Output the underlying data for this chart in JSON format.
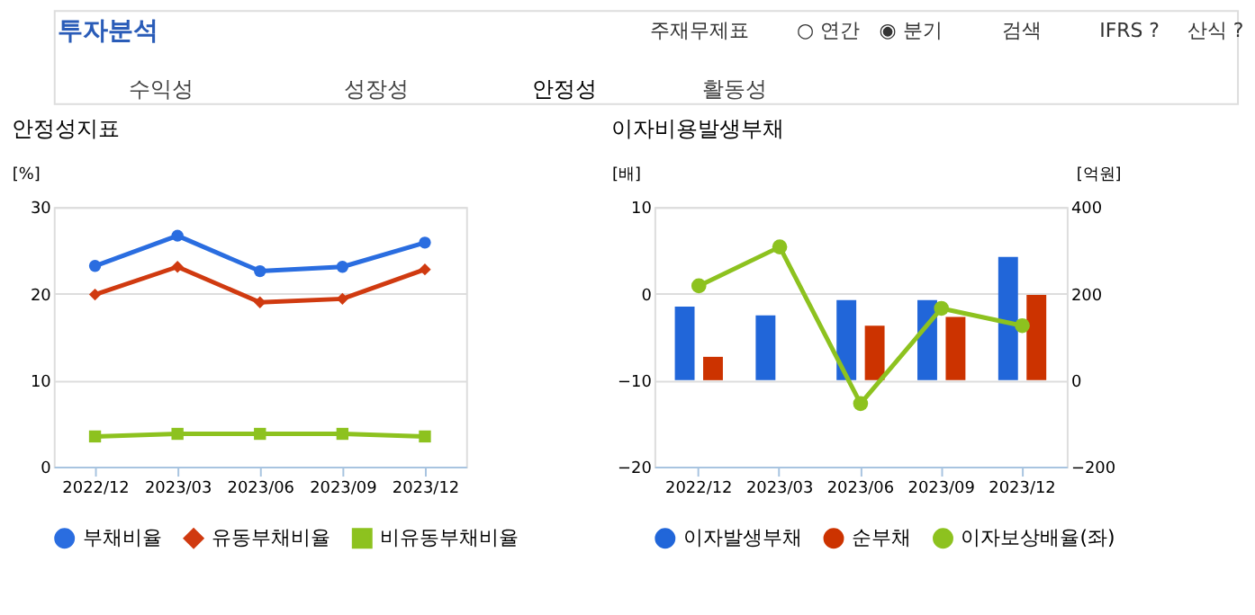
{
  "chart_data": [
    {
      "type": "other",
      "title": "투자분석",
      "annotations": [
        "주재무제표",
        "○ 연간",
        "◉ 분기",
        "검색",
        "IFRS ?",
        "산식 ?",
        "수익성",
        "성장성",
        "안정성",
        "활동성"
      ]
    },
    {
      "type": "line",
      "title": "안정성지표",
      "ylabel": "[%]",
      "categories": [
        "2022/12",
        "2023/03",
        "2023/06",
        "2023/09",
        "2023/12"
      ],
      "ylim": [
        0,
        30
      ],
      "yticks": [
        0,
        10,
        20,
        30
      ],
      "grid": "y",
      "legend": "bottom",
      "series": [
        {
          "name": "부채비율",
          "color": "#2a6de0",
          "marker": "circle",
          "values": [
            23.2,
            26.7,
            22.6,
            23.1,
            25.9
          ]
        },
        {
          "name": "유동부채비율",
          "color": "#d03a10",
          "marker": "diamond",
          "values": [
            19.9,
            23.1,
            19.0,
            19.4,
            22.8
          ]
        },
        {
          "name": "비유동부채비율",
          "color": "#8dc21f",
          "marker": "square",
          "values": [
            3.5,
            3.8,
            3.8,
            3.8,
            3.5
          ]
        }
      ]
    },
    {
      "type": "bar",
      "title": "이자비용발생부채",
      "ylabel": "[배]",
      "y2label": "[억원]",
      "categories": [
        "2022/12",
        "2023/03",
        "2023/06",
        "2023/09",
        "2023/12"
      ],
      "ylim": [
        -20,
        10
      ],
      "yticks": [
        -20,
        -10,
        0,
        10
      ],
      "y2lim": [
        -200,
        400
      ],
      "y2ticks": [
        -200,
        0,
        200,
        400
      ],
      "grid": "y",
      "legend": "bottom",
      "series": [
        {
          "name": "이자발생부채",
          "color": "#2166d9",
          "axis": "y2",
          "values": [
            170,
            150,
            185,
            185,
            285
          ]
        },
        {
          "name": "순부채",
          "color": "#cc3300",
          "axis": "y2",
          "values": [
            54,
            null,
            126,
            146,
            197
          ]
        },
        {
          "name": "이자보상배율(좌)",
          "type": "line",
          "color": "#8dc21f",
          "marker": "circle",
          "values": [
            0.9,
            5.4,
            -12.7,
            -1.7,
            -3.7
          ]
        }
      ]
    }
  ]
}
